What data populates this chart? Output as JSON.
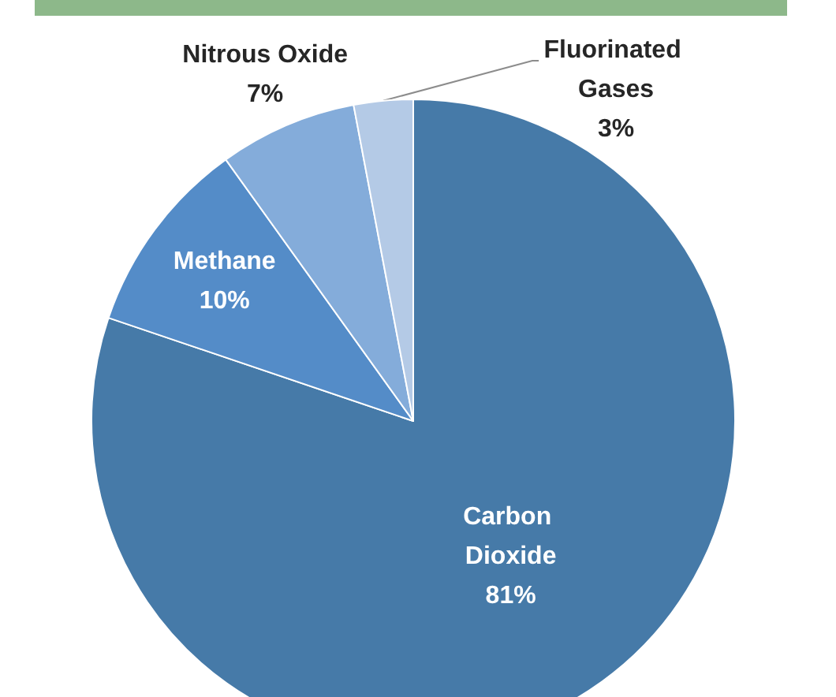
{
  "chart_data": {
    "type": "pie",
    "categories": [
      "Carbon Dioxide",
      "Methane",
      "Nitrous Oxide",
      "Fluorinated Gases"
    ],
    "values": [
      81,
      10,
      7,
      3
    ],
    "colors": [
      "#467aa8",
      "#548cc8",
      "#84acda",
      "#b4cae6"
    ],
    "value_labels": [
      "81%",
      "10%",
      "7%",
      "3%"
    ]
  }
}
